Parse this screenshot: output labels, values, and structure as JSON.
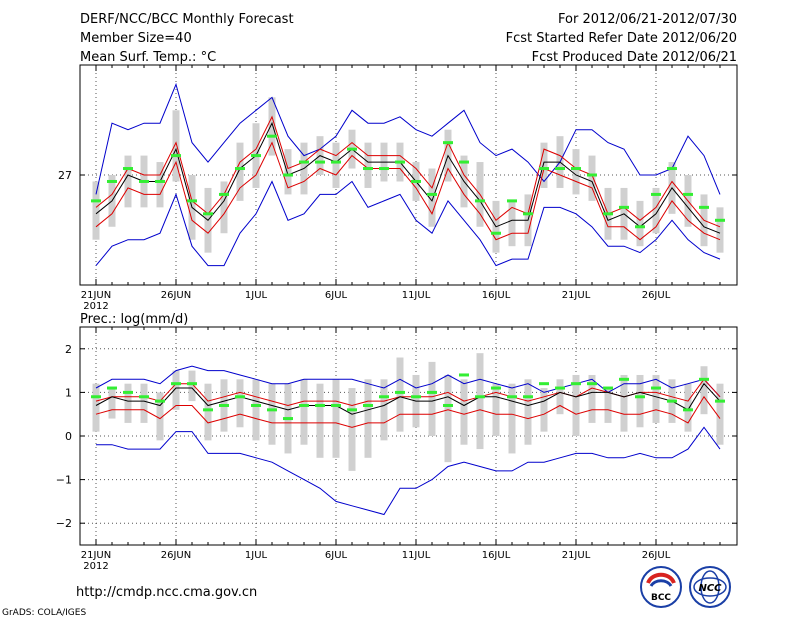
{
  "header": {
    "title": "DERF/NCC/BCC Monthly Forecast",
    "member_size": "Member Size=40",
    "variable": "Mean Surf. Temp.: °C",
    "period": "For 2012/06/21-2012/07/30",
    "fcst_started": "Fcst Started Refer Date 2012/06/20",
    "fcst_produced": "Fcst Produced Date 2012/06/21"
  },
  "prec_label": "Prec.: log(mm/d)",
  "footer": {
    "url": "http://cmdp.ncc.cma.gov.cn",
    "grads": "GrADS: COLA/IGES",
    "logo_bcc": "BCC",
    "logo_ncc": "NCC"
  },
  "colors": {
    "ensemble_max_min": "#0000cc",
    "spread": "#dd0000",
    "mean": "#000000",
    "box": "#d0d0d0",
    "member_marker": "#33ee33"
  },
  "chart_data": [
    {
      "type": "line",
      "name": "temperature",
      "title": "Mean Surf. Temp.: °C",
      "x_labels": [
        "21JUN",
        "26JUN",
        "1JUL",
        "6JUL",
        "11JUL",
        "16JUL",
        "21JUL",
        "26JUL"
      ],
      "x_label_days": [
        1,
        6,
        11,
        16,
        21,
        26,
        31,
        36
      ],
      "x_sublabel": "2012",
      "ylim": [
        25.3,
        28.7
      ],
      "yticks": [
        27
      ],
      "ytick_labels": [
        "27"
      ],
      "series": [
        {
          "name": "max",
          "values": [
            26.7,
            27.8,
            27.7,
            27.8,
            27.8,
            28.4,
            27.5,
            27.2,
            27.5,
            27.8,
            28.0,
            28.2,
            27.6,
            27.3,
            27.4,
            27.6,
            28.0,
            27.8,
            27.8,
            27.9,
            27.7,
            27.6,
            27.8,
            28.0,
            27.5,
            27.3,
            27.4,
            27.2,
            26.9,
            27.2,
            27.7,
            27.7,
            27.5,
            27.4,
            27.0,
            27.0,
            27.1,
            27.6,
            27.3,
            26.7
          ]
        },
        {
          "name": "upper",
          "values": [
            26.5,
            26.7,
            27.1,
            27.0,
            27.0,
            27.5,
            26.6,
            26.4,
            26.7,
            27.2,
            27.4,
            27.9,
            27.1,
            27.2,
            27.4,
            27.3,
            27.5,
            27.3,
            27.3,
            27.3,
            27.1,
            26.8,
            27.5,
            27.0,
            26.7,
            26.3,
            26.5,
            26.4,
            27.4,
            27.3,
            27.1,
            27.0,
            26.4,
            26.5,
            26.3,
            26.5,
            26.9,
            26.6,
            26.3,
            26.2
          ]
        },
        {
          "name": "mean",
          "values": [
            26.4,
            26.6,
            27.0,
            26.9,
            26.9,
            27.4,
            26.5,
            26.3,
            26.6,
            27.1,
            27.3,
            27.8,
            27.0,
            27.1,
            27.3,
            27.2,
            27.4,
            27.2,
            27.2,
            27.2,
            26.9,
            26.6,
            27.3,
            26.9,
            26.6,
            26.2,
            26.3,
            26.3,
            27.2,
            27.2,
            27.0,
            26.9,
            26.3,
            26.4,
            26.2,
            26.4,
            26.8,
            26.5,
            26.2,
            26.1
          ]
        },
        {
          "name": "lower",
          "values": [
            26.2,
            26.4,
            26.8,
            26.7,
            26.7,
            27.2,
            26.3,
            26.1,
            26.4,
            26.8,
            27.0,
            27.5,
            26.8,
            26.9,
            27.1,
            27.0,
            27.3,
            27.1,
            27.1,
            27.1,
            26.8,
            26.4,
            27.1,
            26.7,
            26.4,
            26.0,
            26.1,
            26.1,
            27.1,
            27.0,
            26.9,
            26.8,
            26.2,
            26.2,
            26.0,
            26.2,
            26.6,
            26.3,
            26.1,
            26.0
          ]
        },
        {
          "name": "min",
          "values": [
            25.6,
            25.9,
            26.0,
            26.0,
            26.1,
            26.7,
            25.9,
            25.6,
            25.6,
            26.1,
            26.4,
            26.9,
            26.3,
            26.4,
            26.7,
            26.7,
            26.9,
            26.5,
            26.6,
            26.7,
            26.3,
            26.1,
            26.6,
            26.3,
            26.0,
            25.6,
            25.7,
            25.7,
            26.5,
            26.5,
            26.4,
            26.2,
            25.9,
            25.9,
            25.8,
            26.0,
            26.3,
            26.0,
            25.8,
            25.7
          ]
        }
      ],
      "boxes": {
        "high": [
          26.9,
          27.0,
          27.3,
          27.3,
          27.2,
          28.0,
          27.0,
          26.8,
          26.9,
          27.5,
          27.8,
          28.2,
          27.4,
          27.5,
          27.6,
          27.5,
          27.7,
          27.5,
          27.5,
          27.5,
          27.2,
          27.1,
          27.7,
          27.3,
          27.2,
          26.6,
          26.6,
          26.7,
          27.5,
          27.6,
          27.4,
          27.3,
          26.8,
          26.8,
          26.6,
          26.8,
          27.2,
          27.0,
          26.7,
          26.5
        ],
        "low": [
          26.0,
          26.2,
          26.5,
          26.5,
          26.5,
          26.9,
          26.0,
          25.8,
          26.1,
          26.6,
          26.8,
          27.3,
          26.7,
          26.7,
          27.0,
          26.8,
          27.1,
          26.8,
          26.9,
          26.9,
          26.6,
          26.2,
          26.9,
          26.5,
          26.2,
          25.8,
          25.9,
          25.9,
          26.8,
          26.8,
          26.7,
          26.6,
          26.0,
          26.0,
          25.9,
          26.1,
          26.4,
          26.2,
          25.9,
          25.8
        ]
      },
      "markers": [
        26.6,
        26.9,
        27.1,
        26.9,
        26.9,
        27.3,
        26.6,
        26.4,
        26.7,
        27.1,
        27.3,
        27.6,
        27.0,
        27.2,
        27.2,
        27.2,
        27.4,
        27.1,
        27.1,
        27.2,
        26.9,
        26.7,
        27.5,
        27.2,
        26.6,
        26.1,
        26.6,
        26.4,
        27.1,
        27.1,
        27.1,
        27.0,
        26.4,
        26.5,
        26.2,
        26.7,
        27.1,
        26.7,
        26.5,
        26.3
      ]
    },
    {
      "type": "line",
      "name": "precipitation",
      "title": "Prec.: log(mm/d)",
      "x_labels": [
        "21JUN",
        "26JUN",
        "1JUL",
        "6JUL",
        "11JUL",
        "16JUL",
        "21JUL",
        "26JUL"
      ],
      "x_label_days": [
        1,
        6,
        11,
        16,
        21,
        26,
        31,
        36
      ],
      "x_sublabel": "2012",
      "ylim": [
        -2.5,
        2.5
      ],
      "yticks": [
        -2,
        -1,
        0,
        1,
        2
      ],
      "ytick_labels": [
        "−2",
        "−1",
        "0",
        "1",
        "2"
      ],
      "series": [
        {
          "name": "max",
          "values": [
            1.1,
            1.3,
            1.3,
            1.3,
            1.2,
            1.5,
            1.6,
            1.5,
            1.5,
            1.4,
            1.3,
            1.2,
            1.2,
            1.3,
            1.3,
            1.3,
            1.3,
            1.2,
            1.1,
            1.3,
            1.1,
            1.2,
            1.4,
            1.2,
            1.3,
            1.2,
            1.1,
            1.2,
            1.0,
            1.1,
            1.2,
            1.3,
            1.0,
            1.2,
            1.2,
            1.3,
            1.1,
            1.2,
            1.3,
            0.9
          ]
        },
        {
          "name": "upper",
          "values": [
            0.8,
            0.9,
            0.9,
            0.9,
            0.8,
            1.2,
            1.2,
            0.8,
            0.9,
            1.0,
            0.9,
            0.8,
            0.7,
            0.8,
            0.8,
            0.8,
            0.7,
            0.8,
            0.8,
            0.9,
            0.9,
            0.9,
            1.0,
            0.8,
            0.9,
            1.0,
            0.9,
            0.8,
            0.9,
            1.0,
            0.9,
            1.1,
            1.0,
            0.9,
            1.0,
            1.0,
            0.9,
            0.8,
            1.3,
            0.9
          ]
        },
        {
          "name": "mean",
          "values": [
            0.7,
            0.9,
            0.8,
            0.8,
            0.7,
            1.1,
            1.1,
            0.7,
            0.8,
            0.9,
            0.8,
            0.7,
            0.6,
            0.7,
            0.7,
            0.7,
            0.5,
            0.6,
            0.7,
            0.9,
            0.8,
            0.8,
            0.9,
            0.7,
            0.9,
            0.9,
            0.8,
            0.7,
            0.8,
            1.0,
            0.9,
            1.0,
            1.0,
            0.9,
            1.0,
            0.9,
            0.8,
            0.6,
            1.2,
            0.8
          ]
        },
        {
          "name": "lower",
          "values": [
            0.5,
            0.6,
            0.6,
            0.6,
            0.4,
            0.7,
            0.7,
            0.3,
            0.4,
            0.5,
            0.4,
            0.3,
            0.3,
            0.3,
            0.3,
            0.3,
            0.2,
            0.3,
            0.3,
            0.5,
            0.5,
            0.5,
            0.6,
            0.5,
            0.6,
            0.5,
            0.5,
            0.4,
            0.5,
            0.7,
            0.5,
            0.6,
            0.6,
            0.5,
            0.5,
            0.6,
            0.5,
            0.3,
            0.9,
            0.4
          ]
        },
        {
          "name": "min",
          "values": [
            -0.2,
            -0.2,
            -0.3,
            -0.3,
            -0.3,
            0.1,
            0.1,
            -0.4,
            -0.4,
            -0.4,
            -0.5,
            -0.6,
            -0.8,
            -1.0,
            -1.2,
            -1.5,
            -1.6,
            -1.7,
            -1.8,
            -1.2,
            -1.2,
            -1.0,
            -0.7,
            -0.6,
            -0.7,
            -0.8,
            -0.8,
            -0.6,
            -0.6,
            -0.5,
            -0.4,
            -0.4,
            -0.5,
            -0.5,
            -0.4,
            -0.5,
            -0.5,
            -0.3,
            0.2,
            -0.3
          ]
        }
      ],
      "boxes": {
        "high": [
          1.2,
          1.1,
          1.2,
          1.2,
          1.0,
          1.5,
          1.5,
          1.2,
          1.3,
          1.3,
          1.3,
          1.2,
          1.2,
          1.3,
          1.2,
          1.3,
          1.1,
          1.3,
          1.3,
          1.8,
          1.4,
          1.7,
          1.4,
          1.3,
          1.9,
          1.2,
          1.2,
          1.3,
          1.1,
          1.3,
          1.4,
          1.4,
          1.1,
          1.4,
          1.4,
          1.4,
          1.3,
          1.2,
          1.6,
          1.2
        ],
        "low": [
          0.1,
          0.4,
          0.3,
          0.3,
          -0.1,
          0.6,
          0.8,
          -0.1,
          0.1,
          0.2,
          -0.1,
          -0.2,
          -0.4,
          -0.2,
          -0.5,
          -0.5,
          -0.8,
          -0.5,
          -0.1,
          0.1,
          0.2,
          0.0,
          -0.6,
          -0.2,
          -0.3,
          0.0,
          -0.4,
          -0.2,
          0.1,
          0.5,
          0.0,
          0.3,
          0.3,
          0.1,
          0.2,
          0.3,
          0.3,
          0.1,
          0.5,
          -0.2
        ]
      },
      "markers": [
        0.9,
        1.1,
        1.0,
        0.9,
        0.8,
        1.2,
        1.2,
        0.6,
        0.7,
        0.9,
        0.7,
        0.6,
        0.4,
        0.7,
        0.7,
        0.7,
        0.6,
        0.7,
        0.9,
        1.0,
        0.9,
        1.0,
        0.7,
        1.4,
        0.9,
        1.1,
        0.9,
        0.9,
        1.2,
        1.1,
        1.2,
        1.2,
        1.1,
        1.3,
        0.9,
        1.1,
        0.8,
        0.6,
        1.3,
        0.8
      ]
    }
  ]
}
